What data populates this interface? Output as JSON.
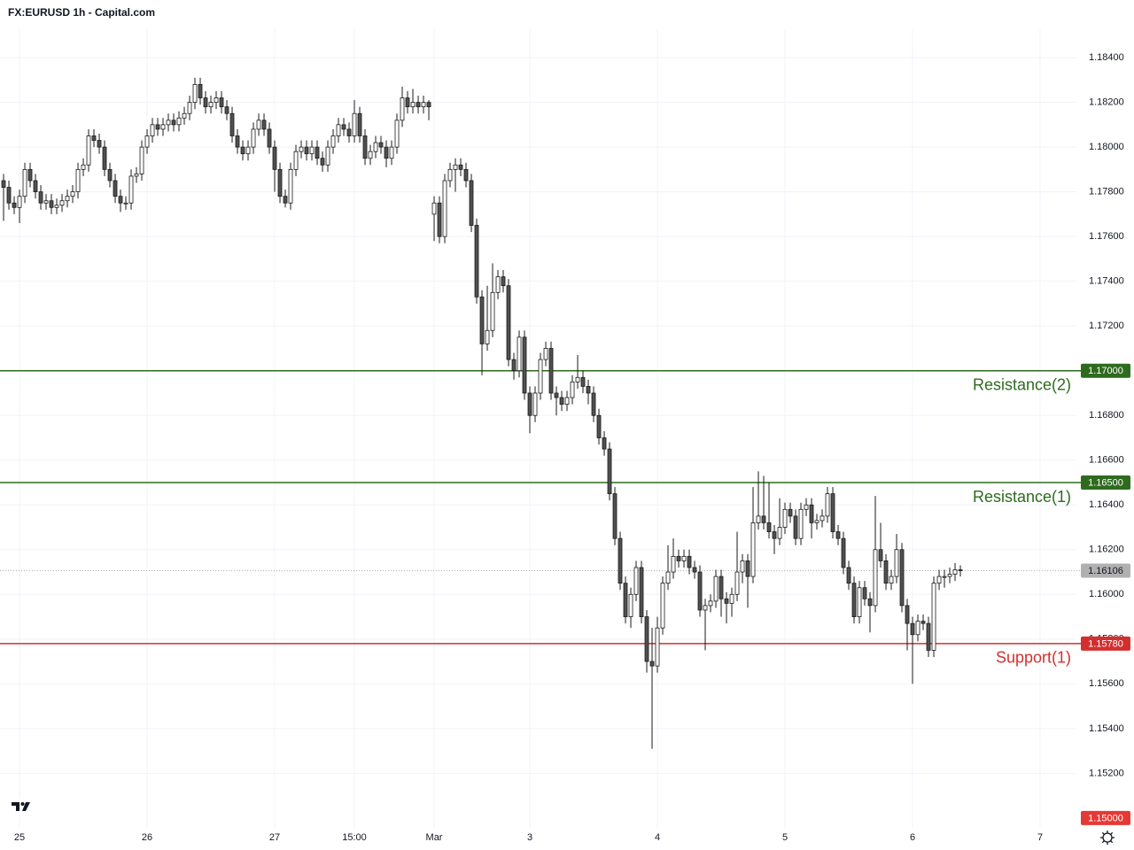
{
  "chart_data": {
    "type": "candlestick",
    "title": "FX:EURUSD 1h - Capital.com",
    "up_color": "#ffffff",
    "down_color": "#505050",
    "border_color": "#1a1a1a",
    "grid": true,
    "xlim": [
      -0.67,
      201.83
    ],
    "xticks": [
      {
        "value": 3,
        "label": "25"
      },
      {
        "value": 27,
        "label": "26"
      },
      {
        "value": 51,
        "label": "27"
      },
      {
        "value": 66,
        "label": "15:00"
      },
      {
        "value": 81,
        "label": "Mar"
      },
      {
        "value": 99,
        "label": "3"
      },
      {
        "value": 123,
        "label": "4"
      },
      {
        "value": 147,
        "label": "5"
      },
      {
        "value": 171,
        "label": "6"
      },
      {
        "value": 195,
        "label": "7"
      }
    ],
    "ylim": [
      1.14956,
      1.18527
    ],
    "yticks": [
      {
        "value": 1.152,
        "label": "1.15200"
      },
      {
        "value": 1.154,
        "label": "1.15400"
      },
      {
        "value": 1.156,
        "label": "1.15600"
      },
      {
        "value": 1.158,
        "label": "1.15800"
      },
      {
        "value": 1.16,
        "label": "1.16000"
      },
      {
        "value": 1.162,
        "label": "1.16200"
      },
      {
        "value": 1.164,
        "label": "1.16400"
      },
      {
        "value": 1.166,
        "label": "1.16600"
      },
      {
        "value": 1.168,
        "label": "1.16800"
      },
      {
        "value": 1.17,
        "label": "1.17000"
      },
      {
        "value": 1.172,
        "label": "1.17200"
      },
      {
        "value": 1.174,
        "label": "1.17400"
      },
      {
        "value": 1.176,
        "label": "1.17600"
      },
      {
        "value": 1.178,
        "label": "1.17800"
      },
      {
        "value": 1.18,
        "label": "1.18000"
      },
      {
        "value": 1.182,
        "label": "1.18200"
      },
      {
        "value": 1.184,
        "label": "1.18400"
      }
    ],
    "price_lines": [
      {
        "value": 1.17,
        "label": "1.17000",
        "name": "Resistance(2)",
        "color": "#2e6b1f",
        "style": "solid",
        "show_line": true
      },
      {
        "value": 1.165,
        "label": "1.16500",
        "name": "Resistance(1)",
        "color": "#2e6b1f",
        "style": "solid",
        "show_line": true
      },
      {
        "value": 1.1578,
        "label": "1.15780",
        "name": "Support(1)",
        "color": "#d32f2f",
        "style": "solid",
        "show_line": true
      },
      {
        "value": 1.16106,
        "label": "1.16106",
        "color": "#b0b0b0",
        "style": "dotted",
        "show_line": true
      },
      {
        "value": 1.15,
        "label": "1.15000",
        "color": "#e53935",
        "style": "solid",
        "show_line": false
      }
    ],
    "open": [
      1.1785,
      1.1782,
      1.1775,
      1.1773,
      1.1778,
      1.179,
      1.1785,
      1.178,
      1.1775,
      1.1776,
      1.1773,
      1.1774,
      1.1776,
      1.1778,
      1.178,
      1.179,
      1.1792,
      1.1805,
      1.1803,
      1.18,
      1.179,
      1.1785,
      1.1778,
      1.1775,
      1.1775,
      1.1787,
      1.1788,
      1.18,
      1.1805,
      1.181,
      1.1808,
      1.181,
      1.1812,
      1.181,
      1.1813,
      1.1815,
      1.182,
      1.1828,
      1.1822,
      1.1818,
      1.182,
      1.1822,
      1.1818,
      1.1815,
      1.1805,
      1.18,
      1.1797,
      1.18,
      1.1808,
      1.1812,
      1.1808,
      1.18,
      1.179,
      1.1778,
      1.1775,
      1.179,
      1.1798,
      1.18,
      1.1797,
      1.18,
      1.1795,
      1.1792,
      1.18,
      1.1805,
      1.181,
      1.1808,
      1.1805,
      1.1815,
      1.1805,
      1.1795,
      1.1798,
      1.1802,
      1.18,
      1.1795,
      1.18,
      1.1812,
      1.1822,
      1.1818,
      1.182,
      1.1818,
      1.182,
      1.177,
      1.1775,
      1.176,
      1.1785,
      1.179,
      1.1792,
      1.179,
      1.1785,
      1.1765,
      1.1733,
      1.1712,
      1.1718,
      1.1735,
      1.1742,
      1.1738,
      1.1705,
      1.17,
      1.1715,
      1.169,
      1.168,
      1.169,
      1.1705,
      1.171,
      1.169,
      1.1688,
      1.1685,
      1.1688,
      1.1695,
      1.1697,
      1.1693,
      1.169,
      1.168,
      1.167,
      1.1665,
      1.1645,
      1.1625,
      1.1605,
      1.159,
      1.16,
      1.1612,
      1.159,
      1.157,
      1.1568,
      1.1585,
      1.1605,
      1.161,
      1.1617,
      1.1615,
      1.1617,
      1.1612,
      1.161,
      1.1593,
      1.1595,
      1.1597,
      1.1608,
      1.1598,
      1.1596,
      1.16,
      1.161,
      1.1615,
      1.1608,
      1.1632,
      1.1635,
      1.1632,
      1.1628,
      1.1625,
      1.163,
      1.1638,
      1.1635,
      1.1625,
      1.1638,
      1.164,
      1.1632,
      1.1633,
      1.1635,
      1.1645,
      1.1628,
      1.1625,
      1.1612,
      1.1605,
      1.159,
      1.1603,
      1.1598,
      1.1595,
      1.162,
      1.1615,
      1.1605,
      1.1608,
      1.162,
      1.1595,
      1.1587,
      1.1582,
      1.1588,
      1.1587,
      1.1575,
      1.1605,
      1.1608,
      1.1608,
      1.1609,
      1.1611
    ],
    "high": [
      1.1788,
      1.1785,
      1.1778,
      1.1781,
      1.1793,
      1.1793,
      1.1788,
      1.1783,
      1.1779,
      1.1779,
      1.1777,
      1.1779,
      1.1781,
      1.1783,
      1.1793,
      1.1795,
      1.1808,
      1.1808,
      1.1806,
      1.1803,
      1.1793,
      1.1788,
      1.1781,
      1.1778,
      1.179,
      1.1791,
      1.1803,
      1.1808,
      1.1813,
      1.1813,
      1.1813,
      1.1815,
      1.1815,
      1.1816,
      1.1818,
      1.1823,
      1.1831,
      1.1831,
      1.1825,
      1.1823,
      1.1825,
      1.1825,
      1.1821,
      1.1818,
      1.1808,
      1.1803,
      1.1803,
      1.1811,
      1.1815,
      1.1815,
      1.1811,
      1.1803,
      1.1793,
      1.1781,
      1.1793,
      1.1801,
      1.1803,
      1.1803,
      1.1803,
      1.1803,
      1.1798,
      1.1803,
      1.1808,
      1.1813,
      1.1813,
      1.1811,
      1.1821,
      1.1818,
      1.1808,
      1.1801,
      1.1805,
      1.1805,
      1.1803,
      1.1803,
      1.1815,
      1.1827,
      1.1825,
      1.1826,
      1.1823,
      1.1823,
      1.1821,
      1.1778,
      1.1778,
      1.1788,
      1.1793,
      1.1795,
      1.1795,
      1.1793,
      1.1788,
      1.1768,
      1.1736,
      1.1738,
      1.1748,
      1.1745,
      1.1745,
      1.1741,
      1.1708,
      1.1718,
      1.1718,
      1.1693,
      1.1693,
      1.1708,
      1.1713,
      1.1713,
      1.1693,
      1.1691,
      1.1691,
      1.1698,
      1.1707,
      1.17,
      1.1696,
      1.1693,
      1.1683,
      1.1673,
      1.1668,
      1.1648,
      1.1628,
      1.1608,
      1.1603,
      1.1615,
      1.1615,
      1.1593,
      1.1585,
      1.159,
      1.1608,
      1.1622,
      1.1625,
      1.162,
      1.162,
      1.162,
      1.1615,
      1.1613,
      1.1598,
      1.16,
      1.1611,
      1.1611,
      1.1601,
      1.1603,
      1.1628,
      1.1618,
      1.1618,
      1.1648,
      1.1655,
      1.1653,
      1.165,
      1.1631,
      1.1643,
      1.1641,
      1.1641,
      1.1638,
      1.1641,
      1.1643,
      1.1643,
      1.1636,
      1.1638,
      1.1648,
      1.1648,
      1.1631,
      1.1628,
      1.1615,
      1.1608,
      1.1606,
      1.1606,
      1.1601,
      1.1644,
      1.1632,
      1.1618,
      1.1611,
      1.1627,
      1.1623,
      1.1598,
      1.159,
      1.1591,
      1.1591,
      1.159,
      1.1608,
      1.1611,
      1.1611,
      1.1612,
      1.1614,
      1.1613
    ],
    "low": [
      1.1767,
      1.1772,
      1.177,
      1.1766,
      1.1775,
      1.1782,
      1.1777,
      1.1772,
      1.1772,
      1.177,
      1.177,
      1.1771,
      1.1773,
      1.1775,
      1.1777,
      1.1787,
      1.1789,
      1.18,
      1.1797,
      1.1787,
      1.1782,
      1.1775,
      1.1771,
      1.1772,
      1.1772,
      1.1784,
      1.1785,
      1.1797,
      1.1802,
      1.1805,
      1.1805,
      1.1807,
      1.1807,
      1.1807,
      1.181,
      1.1812,
      1.1817,
      1.1819,
      1.1815,
      1.1815,
      1.1817,
      1.1815,
      1.1812,
      1.1802,
      1.1797,
      1.1794,
      1.1794,
      1.1797,
      1.1805,
      1.1805,
      1.1797,
      1.178,
      1.1775,
      1.1773,
      1.1772,
      1.1787,
      1.1795,
      1.1794,
      1.1794,
      1.1792,
      1.1789,
      1.1789,
      1.1797,
      1.1802,
      1.1805,
      1.1802,
      1.1802,
      1.1802,
      1.1792,
      1.1792,
      1.1795,
      1.1797,
      1.1791,
      1.1792,
      1.1797,
      1.1809,
      1.1815,
      1.1815,
      1.1815,
      1.1815,
      1.1812,
      1.1758,
      1.1757,
      1.1757,
      1.1782,
      1.178,
      1.1787,
      1.1782,
      1.1762,
      1.173,
      1.1698,
      1.1709,
      1.1715,
      1.1732,
      1.1735,
      1.1702,
      1.1696,
      1.1697,
      1.1687,
      1.1672,
      1.1677,
      1.1687,
      1.1702,
      1.1687,
      1.168,
      1.1682,
      1.1682,
      1.1685,
      1.1692,
      1.169,
      1.1685,
      1.1677,
      1.1667,
      1.1662,
      1.1642,
      1.1622,
      1.1602,
      1.1587,
      1.1585,
      1.1597,
      1.1587,
      1.1565,
      1.1531,
      1.1565,
      1.1582,
      1.1602,
      1.1607,
      1.1612,
      1.1612,
      1.1609,
      1.1607,
      1.159,
      1.1575,
      1.1592,
      1.1594,
      1.159,
      1.1587,
      1.159,
      1.1597,
      1.1605,
      1.1594,
      1.1605,
      1.1629,
      1.1629,
      1.1625,
      1.1618,
      1.1622,
      1.1627,
      1.1632,
      1.1622,
      1.1622,
      1.1635,
      1.1625,
      1.1629,
      1.163,
      1.1632,
      1.1625,
      1.1622,
      1.1609,
      1.1602,
      1.1587,
      1.1587,
      1.1595,
      1.1583,
      1.1592,
      1.1612,
      1.1602,
      1.1602,
      1.1605,
      1.1592,
      1.1575,
      1.156,
      1.1579,
      1.1584,
      1.1572,
      1.1572,
      1.1602,
      1.1603,
      1.1605,
      1.1606,
      1.1608
    ],
    "close": [
      1.1782,
      1.1775,
      1.1773,
      1.1778,
      1.179,
      1.1785,
      1.178,
      1.1775,
      1.1776,
      1.1773,
      1.1774,
      1.1776,
      1.1778,
      1.178,
      1.179,
      1.1792,
      1.1805,
      1.1803,
      1.18,
      1.179,
      1.1785,
      1.1778,
      1.1775,
      1.1775,
      1.1787,
      1.1788,
      1.18,
      1.1805,
      1.181,
      1.1808,
      1.181,
      1.1812,
      1.181,
      1.1813,
      1.1815,
      1.182,
      1.1828,
      1.1822,
      1.1818,
      1.182,
      1.1822,
      1.1818,
      1.1815,
      1.1805,
      1.18,
      1.1797,
      1.18,
      1.1808,
      1.1812,
      1.1808,
      1.18,
      1.179,
      1.1778,
      1.1775,
      1.179,
      1.1798,
      1.18,
      1.1797,
      1.18,
      1.1795,
      1.1792,
      1.18,
      1.1805,
      1.181,
      1.1808,
      1.1805,
      1.1815,
      1.1805,
      1.1795,
      1.1798,
      1.1802,
      1.18,
      1.1795,
      1.18,
      1.1812,
      1.1822,
      1.1818,
      1.182,
      1.1818,
      1.182,
      1.1818,
      1.1775,
      1.176,
      1.1785,
      1.179,
      1.1792,
      1.179,
      1.1785,
      1.1765,
      1.1733,
      1.1712,
      1.1718,
      1.1735,
      1.1742,
      1.1738,
      1.1705,
      1.17,
      1.1715,
      1.169,
      1.168,
      1.169,
      1.1705,
      1.171,
      1.169,
      1.1688,
      1.1685,
      1.1688,
      1.1695,
      1.1697,
      1.1693,
      1.169,
      1.168,
      1.167,
      1.1665,
      1.1645,
      1.1625,
      1.1605,
      1.159,
      1.16,
      1.1612,
      1.159,
      1.157,
      1.1568,
      1.1585,
      1.1605,
      1.161,
      1.1617,
      1.1615,
      1.1617,
      1.1612,
      1.161,
      1.1593,
      1.1595,
      1.1597,
      1.1608,
      1.1598,
      1.1596,
      1.16,
      1.161,
      1.1615,
      1.1608,
      1.1632,
      1.1635,
      1.1632,
      1.1628,
      1.1625,
      1.163,
      1.1638,
      1.1635,
      1.1625,
      1.1638,
      1.164,
      1.1632,
      1.1633,
      1.1635,
      1.1645,
      1.1628,
      1.1625,
      1.1612,
      1.1605,
      1.159,
      1.1603,
      1.1598,
      1.1595,
      1.162,
      1.1615,
      1.1605,
      1.1608,
      1.162,
      1.1595,
      1.1587,
      1.1582,
      1.1588,
      1.1587,
      1.1575,
      1.1605,
      1.1608,
      1.1608,
      1.1609,
      1.1611,
      1.16106
    ]
  }
}
